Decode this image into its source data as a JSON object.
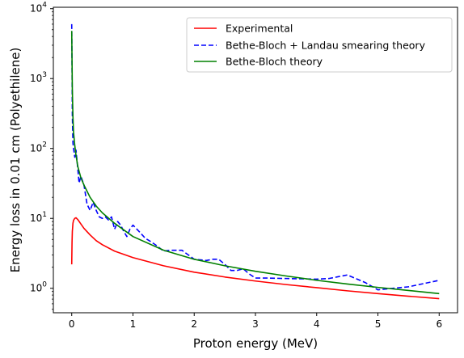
{
  "chart_data": {
    "type": "line",
    "xlabel": "Proton energy (MeV)",
    "ylabel": "Energy loss in 0.01 cm (Polyethilene)",
    "xlim": [
      -0.3,
      6.3
    ],
    "ylim_log10": [
      -0.35,
      4.02
    ],
    "yscale": "log",
    "grid": false,
    "legend_position": "top-right",
    "x_ticks": [
      0,
      1,
      2,
      3,
      4,
      5,
      6
    ],
    "x_tick_labels": [
      "0",
      "1",
      "2",
      "3",
      "4",
      "5",
      "6"
    ],
    "y_ticks": [
      1,
      10,
      100,
      1000,
      10000
    ],
    "y_tick_labels": [
      {
        "base": "10",
        "exp": "0"
      },
      {
        "base": "10",
        "exp": "1"
      },
      {
        "base": "10",
        "exp": "2"
      },
      {
        "base": "10",
        "exp": "3"
      },
      {
        "base": "10",
        "exp": "4"
      }
    ],
    "series": [
      {
        "name": "Experimental",
        "color": "#ff0000",
        "dash": "solid",
        "x": [
          0.0,
          0.005,
          0.01,
          0.02,
          0.03,
          0.05,
          0.07,
          0.1,
          0.15,
          0.2,
          0.3,
          0.4,
          0.5,
          0.7,
          1.0,
          1.5,
          2.0,
          2.5,
          3.0,
          3.5,
          4.0,
          4.5,
          5.0,
          5.5,
          6.0
        ],
        "y": [
          2.2,
          4.5,
          6.5,
          8.5,
          9.4,
          10.0,
          10.2,
          9.6,
          8.3,
          7.2,
          5.8,
          4.8,
          4.2,
          3.4,
          2.75,
          2.1,
          1.7,
          1.45,
          1.27,
          1.13,
          1.02,
          0.92,
          0.84,
          0.77,
          0.71
        ]
      },
      {
        "name": "Bethe-Bloch + Landau smearing theory",
        "color": "#0000ff",
        "dash": "dashed",
        "x": [
          0.0,
          0.005,
          0.01,
          0.02,
          0.03,
          0.05,
          0.07,
          0.1,
          0.12,
          0.15,
          0.2,
          0.25,
          0.3,
          0.35,
          0.4,
          0.45,
          0.5,
          0.55,
          0.6,
          0.65,
          0.7,
          0.75,
          0.8,
          0.85,
          0.9,
          0.95,
          1.0,
          1.1,
          1.2,
          1.3,
          1.4,
          1.5,
          1.6,
          1.8,
          2.0,
          2.2,
          2.3,
          2.4,
          2.5,
          2.6,
          2.7,
          2.8,
          2.9,
          3.0,
          3.2,
          3.5,
          4.0,
          4.2,
          4.5,
          4.8,
          5.0,
          5.5,
          6.0
        ],
        "y": [
          6000,
          1500,
          300,
          120,
          100,
          75,
          95,
          50,
          32,
          40,
          30,
          16,
          13,
          17,
          13,
          10.5,
          10,
          10.5,
          9.5,
          10.5,
          7,
          9,
          8,
          6.5,
          5.5,
          7,
          8,
          6.5,
          5.2,
          4.6,
          4.0,
          3.4,
          3.5,
          3.5,
          2.6,
          2.5,
          2.6,
          2.6,
          2.2,
          1.8,
          1.8,
          1.9,
          1.6,
          1.4,
          1.4,
          1.38,
          1.35,
          1.38,
          1.55,
          1.2,
          0.95,
          1.05,
          1.3
        ]
      },
      {
        "name": "Bethe-Bloch theory",
        "color": "#008000",
        "dash": "solid",
        "x": [
          0.0,
          0.005,
          0.01,
          0.02,
          0.03,
          0.05,
          0.07,
          0.1,
          0.15,
          0.2,
          0.3,
          0.4,
          0.5,
          0.7,
          1.0,
          1.5,
          2.0,
          2.5,
          3.0,
          3.5,
          4.0,
          4.5,
          5.0,
          5.5,
          6.0
        ],
        "y": [
          4800,
          1800,
          700,
          280,
          170,
          110,
          80,
          55,
          38,
          30,
          20,
          15,
          12,
          8.5,
          5.5,
          3.5,
          2.6,
          2.1,
          1.75,
          1.5,
          1.3,
          1.15,
          1.03,
          0.93,
          0.84
        ]
      }
    ]
  }
}
